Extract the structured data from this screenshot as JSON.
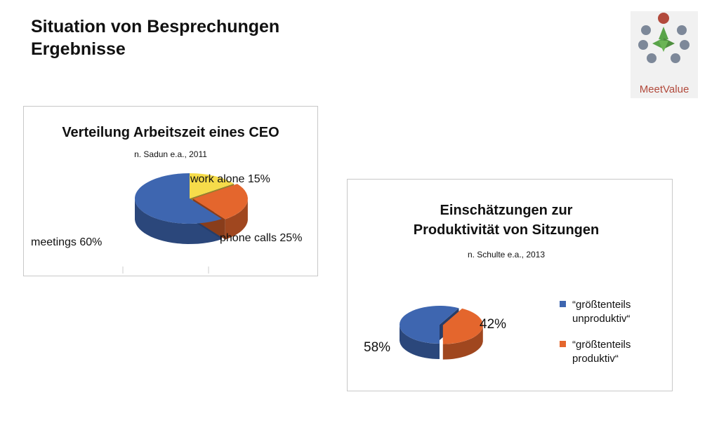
{
  "slide": {
    "title_line1": "Situation von Besprechungen",
    "title_line2": "Ergebnisse",
    "logo_text": "MeetValue"
  },
  "colors": {
    "blue": "#3e66b0",
    "orange": "#e4662d",
    "yellow": "#f6dc4a",
    "logo_red": "#b24a3c",
    "logo_grey": "#7d8899",
    "logo_green": "#5aa44a"
  },
  "chart_data": [
    {
      "type": "pie",
      "title": "Verteilung Arbeitszeit eines CEO",
      "subtitle": "n. Sadun e.a., 2011",
      "slices": [
        {
          "label": "meetings 60%",
          "value": 60,
          "color": "#3e66b0"
        },
        {
          "label": "work alone 15%",
          "value": 15,
          "color": "#f6dc4a"
        },
        {
          "label": "phone calls 25%",
          "value": 25,
          "color": "#e4662d"
        }
      ],
      "legend": "none"
    },
    {
      "type": "pie",
      "title": "Einschätzungen zur Produktivität von Sitzungen",
      "title_line1": "Einschätzungen zur",
      "title_line2": "Produktivität von Sitzungen",
      "subtitle": "n. Schulte e.a., 2013",
      "slices": [
        {
          "label": "58%",
          "value": 58,
          "color": "#3e66b0",
          "legend_line1": "“größtenteils",
          "legend_line2": "unproduktiv“"
        },
        {
          "label": "42%",
          "value": 42,
          "color": "#e4662d",
          "legend_line1": "“größtenteils",
          "legend_line2": "produktiv“"
        }
      ],
      "legend": "right"
    }
  ]
}
